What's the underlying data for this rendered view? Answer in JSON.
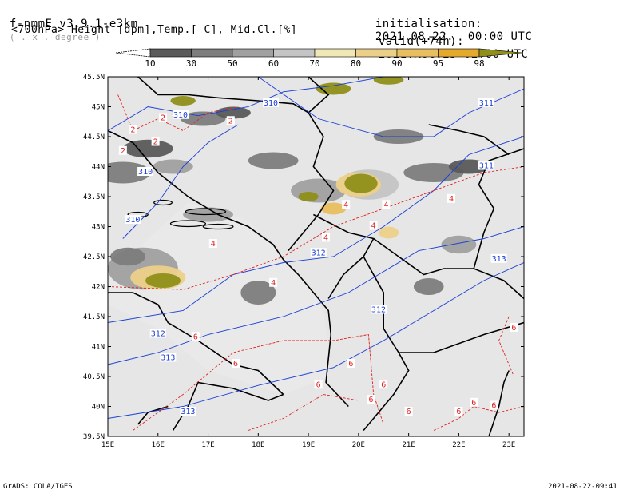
{
  "header": {
    "model": "f-nmmE_v3.9.1-e3km",
    "unit_hint": "( . x . degree )",
    "variables": "<700hPa> Height [dpm],Temp.[ C], Mid.Cl.[%]",
    "init_label": "initialisation:",
    "init_time": "2021.08.22.  00:00 UTC",
    "valid_label": "valid(+74h):",
    "valid_time": "2021.AUG.25 02:00 UTC"
  },
  "colorbar": {
    "labels": [
      "10",
      "30",
      "50",
      "60",
      "70",
      "80",
      "90",
      "95",
      "98"
    ],
    "colors": [
      "#ffffff",
      "#5a5a5a",
      "#7d7d7d",
      "#a0a0a0",
      "#c4c4c4",
      "#efe8b4",
      "#ecd08a",
      "#e8be5e",
      "#e5a92c",
      "#8f8f1a"
    ]
  },
  "axes": {
    "lat_labels": [
      "45.5N",
      "45N",
      "44.5N",
      "44N",
      "43.5N",
      "43N",
      "42.5N",
      "42N",
      "41.5N",
      "41N",
      "40.5N",
      "40N",
      "39.5N"
    ],
    "lon_labels": [
      "15E",
      "16E",
      "17E",
      "18E",
      "19E",
      "20E",
      "21E",
      "22E",
      "23E"
    ],
    "lat_range": [
      39.5,
      45.5
    ],
    "lon_range": [
      15,
      23.3
    ]
  },
  "contours": {
    "height_labels": [
      "310",
      "310",
      "310",
      "310",
      "311",
      "311",
      "312",
      "312",
      "312",
      "313",
      "313",
      "313"
    ],
    "temp_labels": [
      "2",
      "2",
      "2",
      "2",
      "2",
      "4",
      "4",
      "4",
      "4",
      "4",
      "4",
      "4",
      "6",
      "6",
      "6",
      "6",
      "6",
      "6",
      "6",
      "6",
      "6",
      "6",
      "6"
    ],
    "height_color": "#1a3fd6",
    "temp_color": "#e02020"
  },
  "footer": {
    "left": "GrADS: COLA/IGES",
    "right": "2021-08-22-09:41"
  }
}
